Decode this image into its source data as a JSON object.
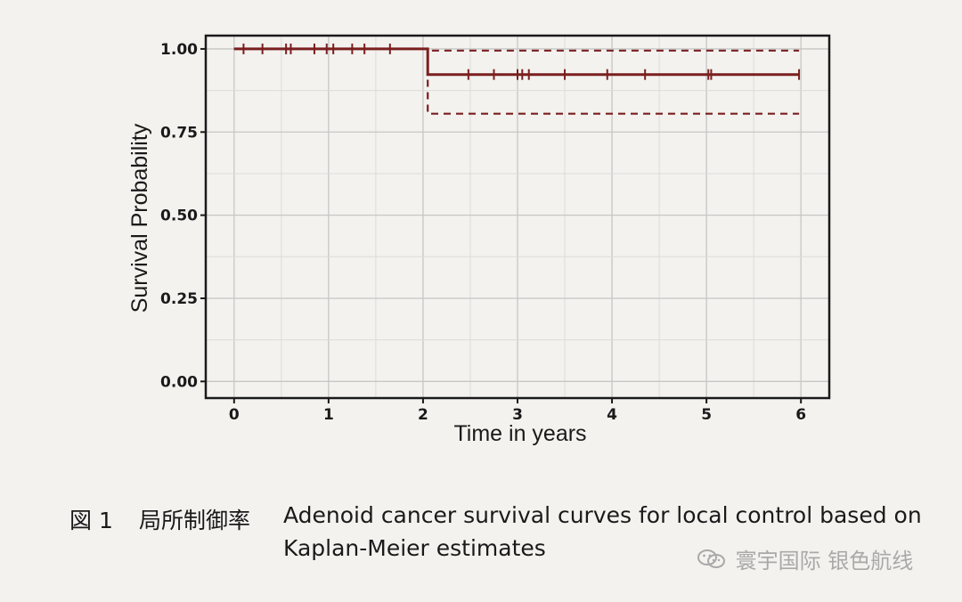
{
  "chart_data": {
    "type": "line",
    "title": "",
    "xlabel": "Time in years",
    "ylabel": "Survival Probability",
    "xlim": [
      -0.3,
      6.3
    ],
    "ylim": [
      -0.05,
      1.04
    ],
    "x_ticks": [
      0,
      1,
      2,
      3,
      4,
      5,
      6
    ],
    "x_tick_labels": [
      "0",
      "1",
      "2",
      "3",
      "4",
      "5",
      "6"
    ],
    "y_ticks": [
      0,
      0.25,
      0.5,
      0.75,
      1.0
    ],
    "y_tick_labels": [
      "0.00",
      "0.25",
      "0.50",
      "0.75",
      "1.00"
    ],
    "grid": true,
    "legend": "none",
    "series": [
      {
        "kind": "estimate",
        "style": "solid",
        "color": "#7a1f1f",
        "points": [
          [
            0,
            1.0
          ],
          [
            2.05,
            1.0
          ],
          [
            2.05,
            0.923
          ],
          [
            5.98,
            0.923
          ]
        ],
        "censor_times": [
          0.1,
          0.3,
          0.55,
          0.6,
          0.85,
          0.98,
          1.05,
          1.25,
          1.38,
          1.65,
          2.48,
          2.75,
          3.0,
          3.05,
          3.12,
          3.5,
          3.95,
          4.35,
          5.02,
          5.05,
          5.98
        ]
      },
      {
        "kind": "upper-confidence-bound",
        "style": "dashed",
        "color": "#7a1f1f",
        "points": [
          [
            0,
            1.0
          ],
          [
            2.05,
            1.0
          ],
          [
            2.05,
            0.995
          ],
          [
            5.98,
            0.995
          ]
        ]
      },
      {
        "kind": "lower-confidence-bound",
        "style": "dashed",
        "color": "#7a1f1f",
        "points": [
          [
            0,
            1.0
          ],
          [
            2.05,
            1.0
          ],
          [
            2.05,
            0.805
          ],
          [
            5.98,
            0.805
          ]
        ]
      }
    ]
  },
  "caption": {
    "label": "図 1",
    "title_cn": "局所制御率",
    "text": "Adenoid cancer survival curves for local control based on Kaplan-Meier estimates"
  },
  "watermark": {
    "icon": "wechat-icon",
    "text": "寰宇国际 银色航线"
  }
}
